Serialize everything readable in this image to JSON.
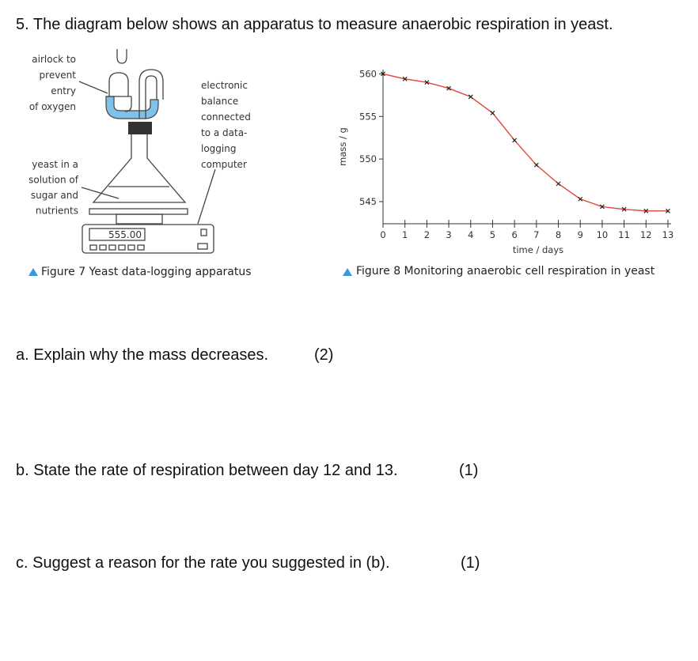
{
  "question": "5. The diagram below shows an apparatus to measure anaerobic respiration in yeast.",
  "figure7": {
    "airlock_label": [
      "airlock to",
      "prevent",
      "entry",
      "of oxygen"
    ],
    "balance_label": [
      "electronic",
      "balance",
      "connected",
      "to a data-",
      "logging",
      "computer"
    ],
    "yeast_label": [
      "yeast in a",
      "solution of",
      "sugar and",
      "nutrients"
    ],
    "display": "555.00",
    "caption": "Figure 7 Yeast data-logging apparatus"
  },
  "chart_data": {
    "type": "line",
    "xlabel": "time / days",
    "ylabel": "mass / g",
    "x": [
      0,
      1,
      2,
      3,
      4,
      5,
      6,
      7,
      8,
      9,
      10,
      11,
      12,
      13
    ],
    "series": [
      {
        "color": "#e0463c",
        "values": [
          560.0,
          559.4,
          559.0,
          558.3,
          557.3,
          555.4,
          552.2,
          549.3,
          547.1,
          545.3,
          544.4,
          544.1,
          543.9,
          543.9
        ]
      }
    ],
    "xlim": [
      0,
      13
    ],
    "xticks": [
      0,
      1,
      2,
      3,
      4,
      5,
      6,
      7,
      8,
      9,
      10,
      11,
      12,
      13
    ],
    "ylim": [
      542.4,
      560.5
    ],
    "yticks": [
      545,
      550,
      555,
      560
    ],
    "caption": "Figure 8 Monitoring anaerobic cell respiration in yeast"
  },
  "parts": [
    {
      "text": "a. Explain why the mass decreases.",
      "marks": "(2)"
    },
    {
      "text": "b. State the rate of respiration between day 12 and 13.",
      "marks": "(1)"
    },
    {
      "text": "c. Suggest a reason for the rate you suggested in (b).",
      "marks": "(1)"
    }
  ]
}
